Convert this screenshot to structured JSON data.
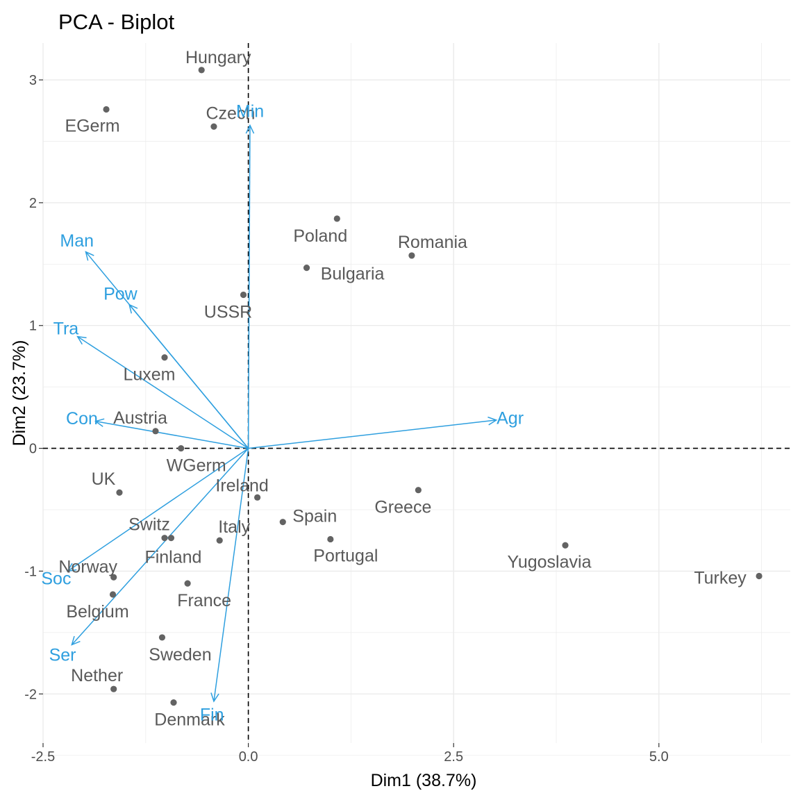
{
  "chart_data": {
    "type": "scatter",
    "title": "PCA - Biplot",
    "xlabel": "Dim1 (38.7%)",
    "ylabel": "Dim2 (23.7%)",
    "xlim": [
      -2.5,
      6.6
    ],
    "ylim": [
      -2.4,
      3.3
    ],
    "xticks": [
      -2.5,
      0.0,
      2.5,
      5.0
    ],
    "xtick_labels": [
      "-2.5",
      "0.0",
      "2.5",
      "5.0"
    ],
    "yticks": [
      -2,
      -1,
      0,
      1,
      2,
      3
    ],
    "ytick_labels": [
      "-2",
      "-1",
      "0",
      "1",
      "2",
      "3"
    ],
    "grid": true,
    "colors": {
      "individuals": "#636363",
      "variables": "#2e9fdf",
      "grid": "#ebebeb",
      "axis_text": "#4d4d4d"
    },
    "individuals": [
      {
        "name": "Hungary",
        "x": -0.57,
        "y": 3.08
      },
      {
        "name": "EGerm",
        "x": -1.73,
        "y": 2.76
      },
      {
        "name": "Czech",
        "x": -0.42,
        "y": 2.62
      },
      {
        "name": "Poland",
        "x": 1.08,
        "y": 1.87
      },
      {
        "name": "Romania",
        "x": 1.99,
        "y": 1.57
      },
      {
        "name": "Bulgaria",
        "x": 0.71,
        "y": 1.47
      },
      {
        "name": "USSR",
        "x": -0.06,
        "y": 1.25
      },
      {
        "name": "Luxem",
        "x": -1.02,
        "y": 0.74
      },
      {
        "name": "Austria",
        "x": -1.13,
        "y": 0.14
      },
      {
        "name": "WGerm",
        "x": -0.82,
        "y": 0.0
      },
      {
        "name": "UK",
        "x": -1.57,
        "y": -0.36
      },
      {
        "name": "Ireland",
        "x": 0.11,
        "y": -0.4
      },
      {
        "name": "Greece",
        "x": 2.07,
        "y": -0.34
      },
      {
        "name": "Spain",
        "x": 0.42,
        "y": -0.6
      },
      {
        "name": "Switz",
        "x": -1.02,
        "y": -0.73
      },
      {
        "name": "Italy",
        "x": -0.35,
        "y": -0.75
      },
      {
        "name": "Portugal",
        "x": 1.0,
        "y": -0.74
      },
      {
        "name": "Finland",
        "x": -0.94,
        "y": -0.73
      },
      {
        "name": "Yugoslavia",
        "x": 3.86,
        "y": -0.79
      },
      {
        "name": "Turkey",
        "x": 6.22,
        "y": -1.04
      },
      {
        "name": "Norway",
        "x": -1.64,
        "y": -1.05
      },
      {
        "name": "France",
        "x": -0.74,
        "y": -1.1
      },
      {
        "name": "Belgium",
        "x": -1.65,
        "y": -1.19
      },
      {
        "name": "Sweden",
        "x": -1.05,
        "y": -1.54
      },
      {
        "name": "Nether",
        "x": -1.64,
        "y": -1.96
      },
      {
        "name": "Denmark",
        "x": -0.91,
        "y": -2.07
      }
    ],
    "variables": [
      {
        "name": "Agr",
        "x": 3.02,
        "y": 0.23
      },
      {
        "name": "Min",
        "x": 0.02,
        "y": 2.63
      },
      {
        "name": "Man",
        "x": -1.98,
        "y": 1.6
      },
      {
        "name": "Pow",
        "x": -1.45,
        "y": 1.17
      },
      {
        "name": "Tra",
        "x": -2.08,
        "y": 0.91
      },
      {
        "name": "Con",
        "x": -1.86,
        "y": 0.22
      },
      {
        "name": "Soc",
        "x": -2.2,
        "y": -1.0
      },
      {
        "name": "Ser",
        "x": -2.15,
        "y": -1.6
      },
      {
        "name": "Fin",
        "x": -0.42,
        "y": -2.06
      }
    ]
  }
}
